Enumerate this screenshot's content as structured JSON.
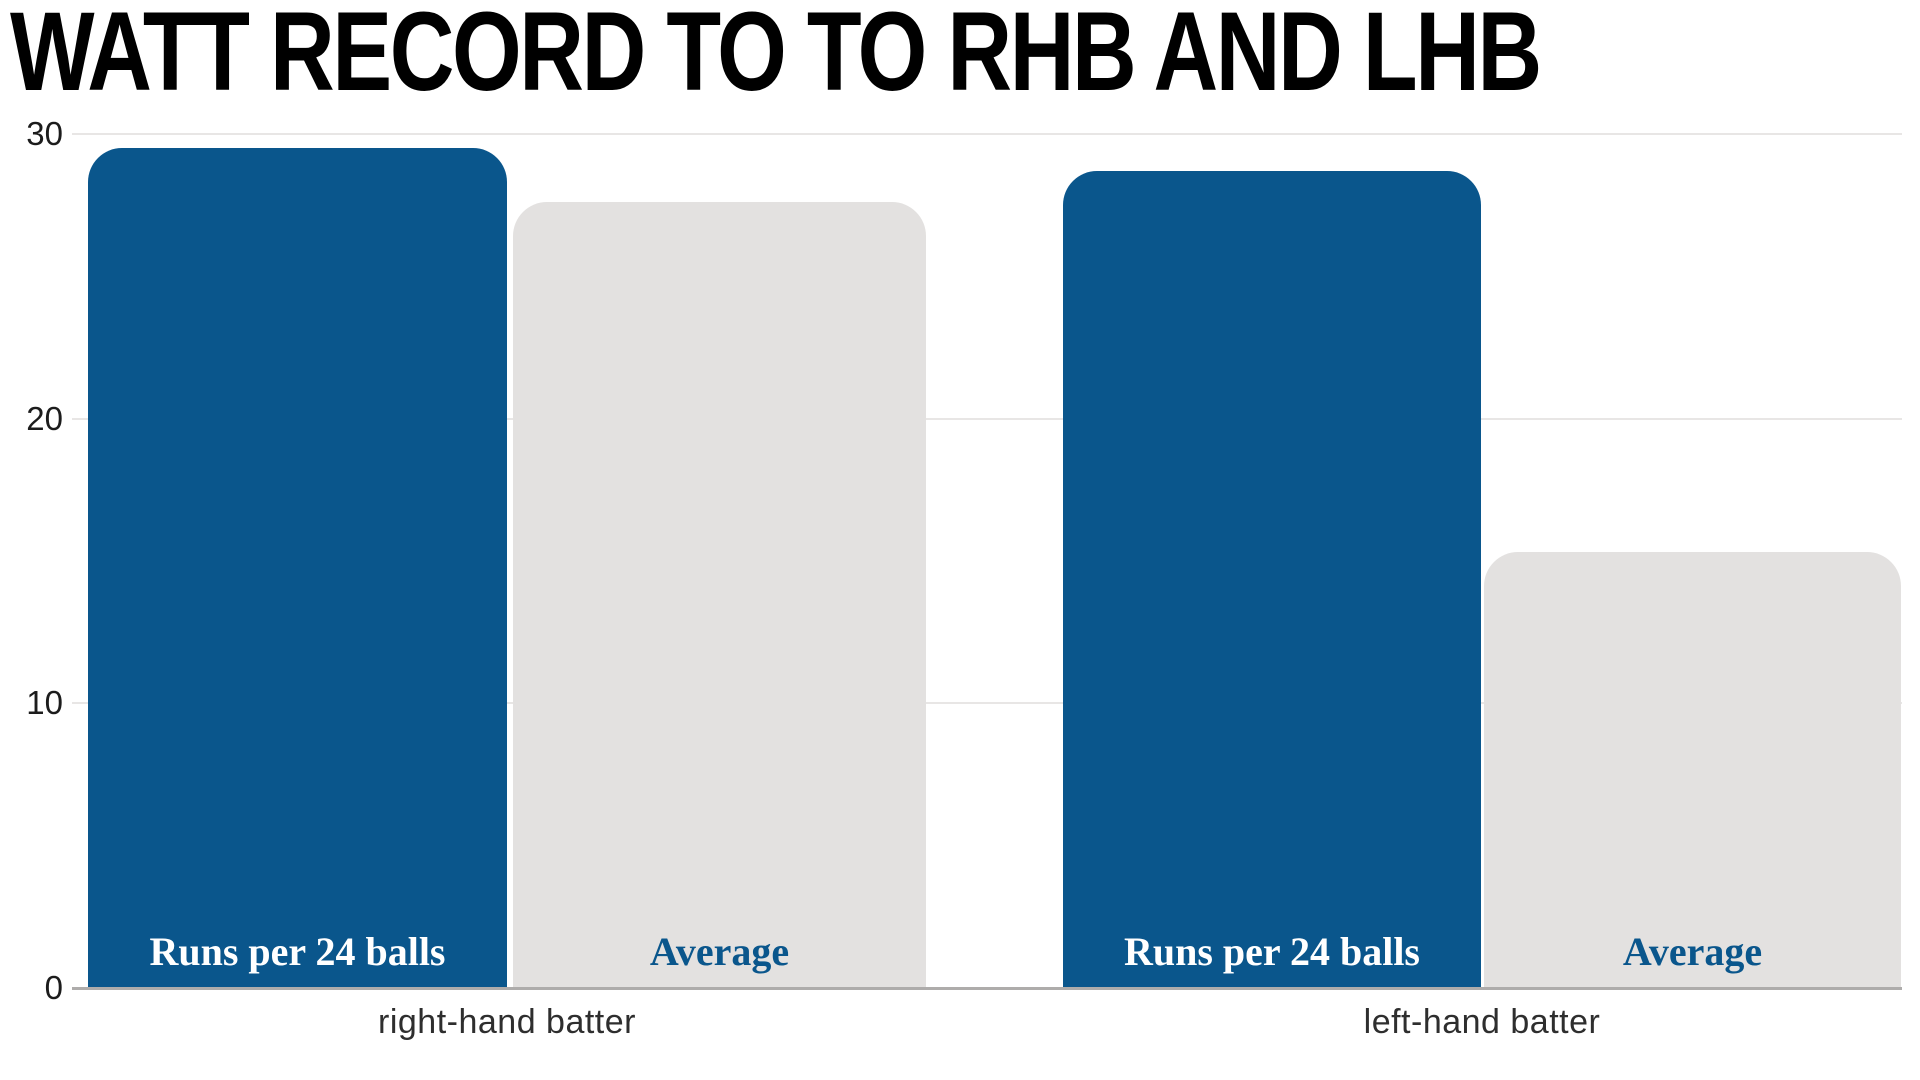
{
  "chart_data": {
    "type": "bar",
    "title": "WATT RECORD TO TO RHB AND LHB",
    "categories": [
      "right-hand batter",
      "left-hand batter"
    ],
    "series": [
      {
        "name": "Runs per 24 balls",
        "values": [
          29.5,
          28.7
        ],
        "bar_color": "#0A568C",
        "label_color": "#FFFFFF"
      },
      {
        "name": "Average",
        "values": [
          27.6,
          15.3
        ],
        "bar_color": "#E3E1E0",
        "label_color": "#0A568C"
      }
    ],
    "ylim": [
      0,
      30
    ],
    "yticks": [
      0,
      10,
      20,
      30
    ],
    "grid": true,
    "legend_position": "labels-inside-bars",
    "background": "#FFFFFF",
    "title_color": "#000000",
    "gridline_color": "#E8E6E5",
    "axis_line_color": "#AEACAB",
    "tick_label_color": "#1C1C1C",
    "category_label_color": "#2E2E2E"
  }
}
